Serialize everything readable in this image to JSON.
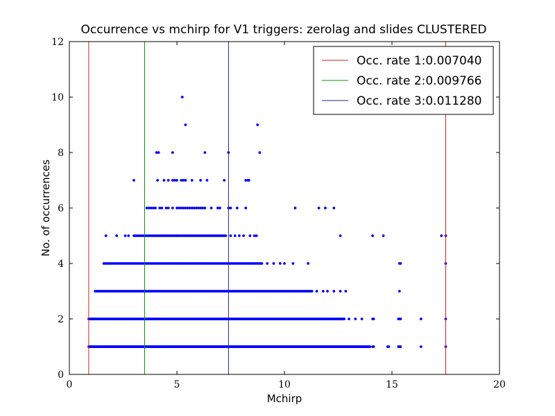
{
  "chart_data": {
    "type": "scatter",
    "title": "Occurrence vs mchirp for V1 triggers: zerolag and slides CLUSTERED",
    "xlabel": "Mchirp",
    "ylabel": "No. of occurrences",
    "xlim": [
      0,
      20
    ],
    "ylim": [
      0,
      12
    ],
    "xticks": [
      "0",
      "5",
      "10",
      "15",
      "20"
    ],
    "yticks": [
      "0",
      "2",
      "4",
      "6",
      "8",
      "10",
      "12"
    ],
    "grid": false,
    "legend_position": "top-right",
    "point_color": "#0000ff",
    "vlines": [
      {
        "label": "Occ. rate 1:0.007040",
        "color": "#cc2222",
        "x": [
          0.9,
          17.5
        ]
      },
      {
        "label": "Occ. rate 2:0.009766",
        "color": "#118811",
        "x": [
          3.5
        ]
      },
      {
        "label": "Occ. rate 3:0.011280",
        "color": "#22228a",
        "x": [
          7.4
        ]
      }
    ],
    "rows": [
      {
        "y": 1,
        "x": [
          [
            0.9,
            14.0,
            0.03
          ],
          14.1,
          14.15,
          14.8,
          14.85,
          15.3,
          15.35,
          15.4,
          16.35,
          17.5
        ]
      },
      {
        "y": 2,
        "x": [
          [
            0.9,
            12.8,
            0.04
          ],
          13.0,
          13.3,
          13.6,
          14.1,
          14.15,
          15.3,
          15.35,
          15.4,
          16.35,
          17.5
        ]
      },
      {
        "y": 3,
        "x": [
          [
            1.2,
            11.3,
            0.06
          ],
          11.5,
          11.8,
          12.0,
          12.3,
          12.6,
          12.85,
          15.35
        ]
      },
      {
        "y": 4,
        "x": [
          [
            1.6,
            9.0,
            0.07
          ],
          9.2,
          9.5,
          9.8,
          10.0,
          10.4,
          11.1,
          15.35,
          15.4,
          17.5
        ]
      },
      {
        "y": 5,
        "x": [
          1.7,
          2.2,
          2.6,
          2.75,
          [
            3.0,
            7.3,
            0.07
          ],
          7.5,
          7.7,
          7.9,
          8.1,
          8.4,
          8.6,
          8.7,
          12.6,
          14.1,
          14.6,
          17.3,
          17.5
        ]
      },
      {
        "y": 6,
        "x": [
          3.6,
          3.7,
          3.8,
          3.9,
          4.0,
          4.2,
          4.3,
          4.5,
          4.6,
          4.8,
          5.0,
          5.1,
          5.2,
          5.3,
          5.4,
          5.5,
          5.6,
          5.7,
          5.8,
          5.9,
          6.0,
          6.1,
          6.2,
          6.3,
          6.6,
          6.9,
          7.0,
          7.4,
          7.5,
          7.8,
          8.2,
          10.5,
          11.6,
          11.9,
          12.3
        ]
      },
      {
        "y": 7,
        "x": [
          3.0,
          4.1,
          4.4,
          4.6,
          4.8,
          4.9,
          5.0,
          5.2,
          5.3,
          5.4,
          5.7,
          6.1,
          6.4,
          7.2,
          8.2,
          8.3,
          8.35
        ]
      },
      {
        "y": 8,
        "x": [
          4.05,
          4.15,
          4.8,
          6.3,
          7.4,
          8.85
        ]
      },
      {
        "y": 9,
        "x": [
          5.4,
          8.75
        ]
      },
      {
        "y": 10,
        "x": [
          5.25
        ]
      }
    ]
  }
}
